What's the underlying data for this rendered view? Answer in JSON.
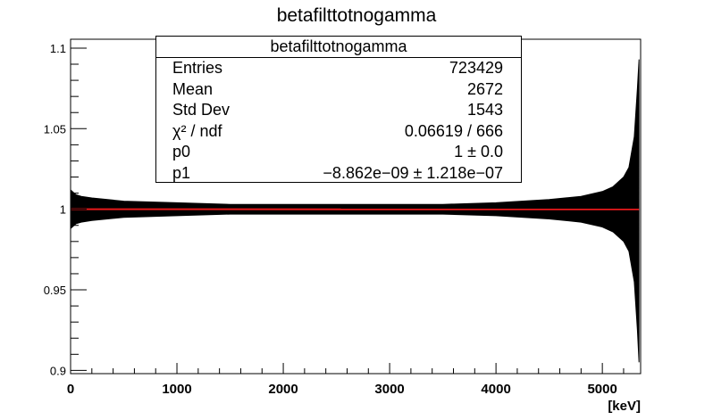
{
  "chart_data": {
    "type": "line",
    "title": "betafilttotnogamma",
    "xlabel": "[keV]",
    "ylabel": "",
    "xlim": [
      0,
      5360
    ],
    "ylim": [
      0.898,
      1.1055
    ],
    "x_ticks": [
      0,
      1000,
      2000,
      3000,
      4000,
      5000
    ],
    "x_tick_labels": [
      "0",
      "1000",
      "2000",
      "3000",
      "4000",
      "5000"
    ],
    "y_ticks": [
      0.9,
      0.95,
      1,
      1.05,
      1.1
    ],
    "y_tick_labels": [
      "0.9",
      "0.95",
      "1",
      "1.05",
      "1.1"
    ],
    "grid": false,
    "histogram_band": {
      "x": [
        0,
        50,
        100,
        200,
        500,
        1000,
        1500,
        2000,
        2500,
        3000,
        3500,
        4000,
        4500,
        4800,
        5000,
        5100,
        5200,
        5250,
        5300,
        5330,
        5345
      ],
      "upper": [
        1.012,
        1.009,
        1.008,
        1.007,
        1.005,
        1.004,
        1.003,
        1.003,
        1.003,
        1.003,
        1.003,
        1.004,
        1.006,
        1.008,
        1.011,
        1.014,
        1.02,
        1.026,
        1.045,
        1.075,
        1.093
      ],
      "lower": [
        0.988,
        0.991,
        0.992,
        0.993,
        0.995,
        0.996,
        0.997,
        0.997,
        0.997,
        0.997,
        0.997,
        0.996,
        0.994,
        0.992,
        0.989,
        0.986,
        0.98,
        0.974,
        0.955,
        0.925,
        0.905
      ]
    },
    "fit_line": {
      "p0": 1,
      "p1": -8.862e-09,
      "x_range": [
        0,
        5345
      ],
      "color": "#e8191b"
    },
    "stats": {
      "title": "betafilttotnogamma",
      "rows": [
        {
          "label": "Entries",
          "value": "723429"
        },
        {
          "label": "Mean",
          "value": "2672"
        },
        {
          "label": "Std Dev",
          "value": "1543"
        },
        {
          "label": "χ² / ndf",
          "value": "0.06619 / 666"
        },
        {
          "label": "p0",
          "value": "1 ± 0.0"
        },
        {
          "label": "p1",
          "value": "−8.862e−09 ± 1.218e−07"
        }
      ]
    }
  }
}
